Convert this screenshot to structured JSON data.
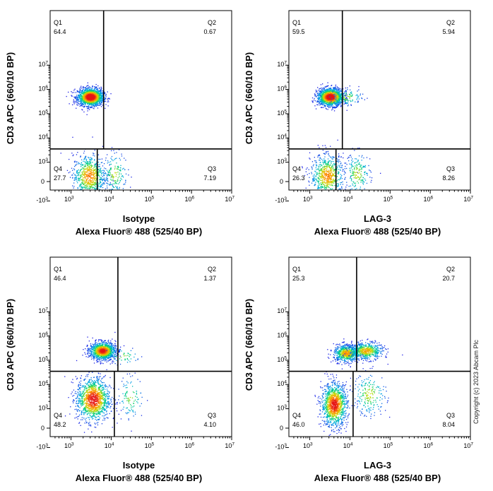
{
  "watermark": "Copyright (c) 2023 Abcam Plc",
  "chart_data": [
    {
      "type": "scatter",
      "subtype": "flow-cytometry-density-dot-plot",
      "xlabel": [
        "Isotype",
        "Alexa Fluor® 488  (525/40 BP)"
      ],
      "ylabel": "CD3 APC (660/10 BP)",
      "x_ticks": [
        "10^3",
        "10^4",
        "10^5",
        "10^6",
        "10^7"
      ],
      "y_ticks": [
        "-10^3",
        "0",
        "10^3",
        "10^4",
        "10^5",
        "10^6",
        "10^7"
      ],
      "gates": {
        "x": 4500,
        "y": 3500
      },
      "quadrants": {
        "Q1": "64.4",
        "Q2": "0.67",
        "Q3": "7.19",
        "Q4": "27.7"
      },
      "populations": [
        {
          "x": 3000,
          "y": 500000,
          "weight": 0.64
        },
        {
          "x": 2800,
          "y": 300,
          "weight": 0.28
        },
        {
          "x": 12000,
          "y": 400,
          "weight": 0.07
        }
      ]
    },
    {
      "type": "scatter",
      "subtype": "flow-cytometry-density-dot-plot",
      "xlabel": [
        "LAG-3",
        "Alexa Fluor® 488  (525/40 BP)"
      ],
      "ylabel": "CD3 APC (660/10 BP)",
      "x_ticks": [
        "10^3",
        "10^4",
        "10^5",
        "10^6",
        "10^7"
      ],
      "y_ticks": [
        "-10^3",
        "0",
        "10^3",
        "10^4",
        "10^5",
        "10^6",
        "10^7"
      ],
      "gates": {
        "x": 4500,
        "y": 3500
      },
      "quadrants": {
        "Q1": "59.5",
        "Q2": "5.94",
        "Q3": "8.26",
        "Q4": "26.3"
      },
      "populations": [
        {
          "x": 3200,
          "y": 500000,
          "weight": 0.6
        },
        {
          "x": 2700,
          "y": 300,
          "weight": 0.27
        },
        {
          "x": 15000,
          "y": 400,
          "weight": 0.08
        },
        {
          "x": 8000,
          "y": 500000,
          "weight": 0.05
        }
      ]
    },
    {
      "type": "scatter",
      "subtype": "flow-cytometry-density-dot-plot",
      "xlabel": [
        "Isotype",
        "Alexa Fluor® 488  (525/40 BP)"
      ],
      "ylabel": "CD3 APC (660/10 BP)",
      "x_ticks": [
        "10^3",
        "10^4",
        "10^5",
        "10^6",
        "10^7"
      ],
      "y_ticks": [
        "-10^3",
        "0",
        "10^3",
        "10^4",
        "10^5",
        "10^6",
        "10^7"
      ],
      "gates": {
        "x": 12000,
        "y": 35000
      },
      "quadrants": {
        "Q1": "46.4",
        "Q2": "1.37",
        "Q3": "4.10",
        "Q4": "48.2"
      },
      "populations": [
        {
          "x": 6000,
          "y": 250000,
          "weight": 0.46
        },
        {
          "x": 3500,
          "y": 2500,
          "weight": 0.48
        },
        {
          "x": 30000,
          "y": 3000,
          "weight": 0.04
        },
        {
          "x": 20000,
          "y": 150000,
          "weight": 0.02
        }
      ]
    },
    {
      "type": "scatter",
      "subtype": "flow-cytometry-density-dot-plot",
      "xlabel": [
        "LAG-3",
        "Alexa Fluor® 488  (525/40 BP)"
      ],
      "ylabel": "CD3 APC (660/10 BP)",
      "x_ticks": [
        "10^3",
        "10^4",
        "10^5",
        "10^6",
        "10^7"
      ],
      "y_ticks": [
        "-10^3",
        "0",
        "10^3",
        "10^4",
        "10^5",
        "10^6",
        "10^7"
      ],
      "gates": {
        "x": 12000,
        "y": 35000
      },
      "quadrants": {
        "Q1": "25.3",
        "Q2": "20.7",
        "Q3": "8.04",
        "Q4": "46.0"
      },
      "populations": [
        {
          "x": 8000,
          "y": 200000,
          "weight": 0.25
        },
        {
          "x": 25000,
          "y": 250000,
          "weight": 0.21
        },
        {
          "x": 4000,
          "y": 1500,
          "weight": 0.46
        },
        {
          "x": 30000,
          "y": 4000,
          "weight": 0.08
        }
      ]
    }
  ]
}
